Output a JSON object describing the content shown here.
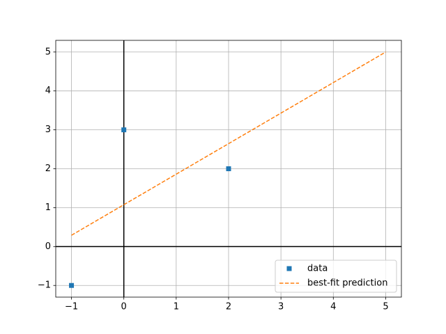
{
  "chart_data": {
    "type": "line",
    "series": [
      {
        "name": "data",
        "color": "#1f77b4",
        "marker": "square",
        "x": [
          -1,
          0,
          2
        ],
        "values": [
          -1,
          3,
          2
        ]
      },
      {
        "name": "best-fit prediction",
        "color": "#ff7f0e",
        "linestyle": "dashed",
        "x": [
          -1,
          5
        ],
        "values": [
          0.29,
          5
        ]
      }
    ],
    "xlim": [
      -1.3,
      5.3
    ],
    "ylim": [
      -1.3,
      5.3
    ],
    "xticks": [
      {
        "value": -1,
        "label": "−1"
      },
      0,
      1,
      2,
      3,
      4,
      5
    ],
    "yticks": [
      {
        "value": -1,
        "label": "−1"
      },
      0,
      1,
      2,
      3,
      4,
      5
    ],
    "hlines": [
      0
    ],
    "vlines": [
      0
    ],
    "grid": true,
    "legend": "lower right"
  }
}
